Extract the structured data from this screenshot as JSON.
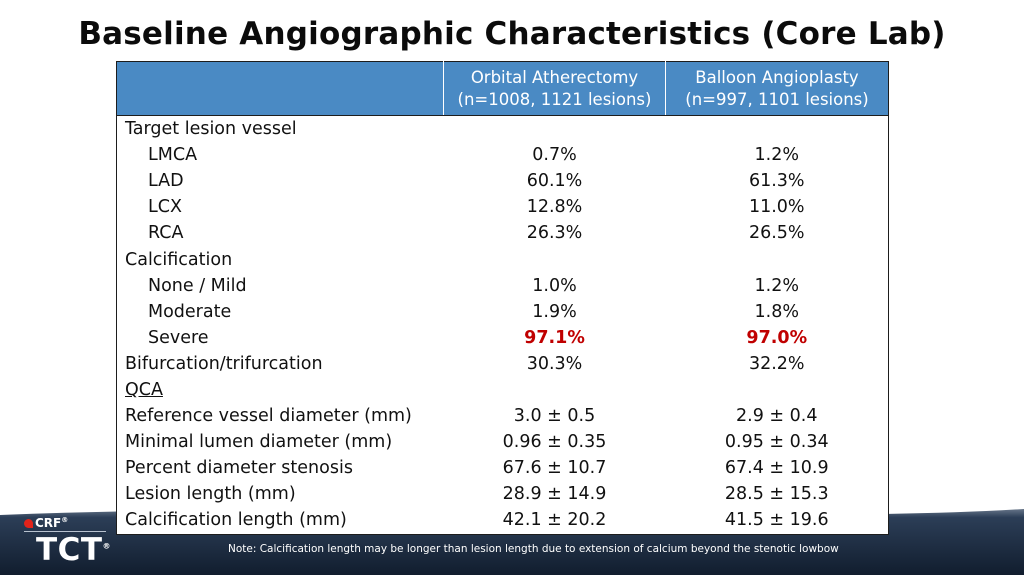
{
  "title": "Baseline Angiographic Characteristics (Core Lab)",
  "table": {
    "headers": [
      "",
      "Orbital Atherectomy (n=1008, 1121 lesions)",
      "Balloon Angioplasty (n=997, 1101 lesions)"
    ],
    "header_lines": {
      "oa_line1": "Orbital Atherectomy",
      "oa_line2": "(n=1008, 1121 lesions)",
      "ba_line1": "Balloon Angioplasty",
      "ba_line2": "(n=997, 1101 lesions)"
    },
    "rows": [
      {
        "label": "Target lesion vessel",
        "oa": "",
        "ba": ""
      },
      {
        "label": "LMCA",
        "oa": "0.7%",
        "ba": "1.2%"
      },
      {
        "label": "LAD",
        "oa": "60.1%",
        "ba": "61.3%"
      },
      {
        "label": "LCX",
        "oa": "12.8%",
        "ba": "11.0%"
      },
      {
        "label": "RCA",
        "oa": "26.3%",
        "ba": "26.5%"
      },
      {
        "label": "Calcification",
        "oa": "",
        "ba": ""
      },
      {
        "label": "None / Mild",
        "oa": "1.0%",
        "ba": "1.2%"
      },
      {
        "label": "Moderate",
        "oa": "1.9%",
        "ba": "1.8%"
      },
      {
        "label": "Severe",
        "oa": "97.1%",
        "ba": "97.0%"
      },
      {
        "label": "Bifurcation/trifurcation",
        "oa": "30.3%",
        "ba": "32.2%"
      },
      {
        "label": "QCA",
        "oa": "",
        "ba": ""
      },
      {
        "label": "Reference vessel diameter (mm)",
        "oa": "3.0 ± 0.5",
        "ba": "2.9 ± 0.4"
      },
      {
        "label": "Minimal lumen diameter (mm)",
        "oa": "0.96 ± 0.35",
        "ba": "0.95 ± 0.34"
      },
      {
        "label": "Percent diameter stenosis",
        "oa": "67.6 ± 10.7",
        "ba": "67.4 ± 10.9"
      },
      {
        "label": "Lesion length (mm)",
        "oa": "28.9 ± 14.9",
        "ba": "28.5 ± 15.3"
      },
      {
        "label": "Calcification length (mm)",
        "oa": "42.1 ± 20.2",
        "ba": "41.5 ± 19.6"
      }
    ]
  },
  "colors": {
    "header_bg": "#4a8ac4",
    "highlight": "#c00000"
  },
  "footer": {
    "logo_top": "CRF",
    "logo_reg": "®",
    "logo_main": "TCT",
    "note": "Note: Calcification length may be longer than lesion length due to extension of calcium beyond the stenotic lowbow"
  }
}
